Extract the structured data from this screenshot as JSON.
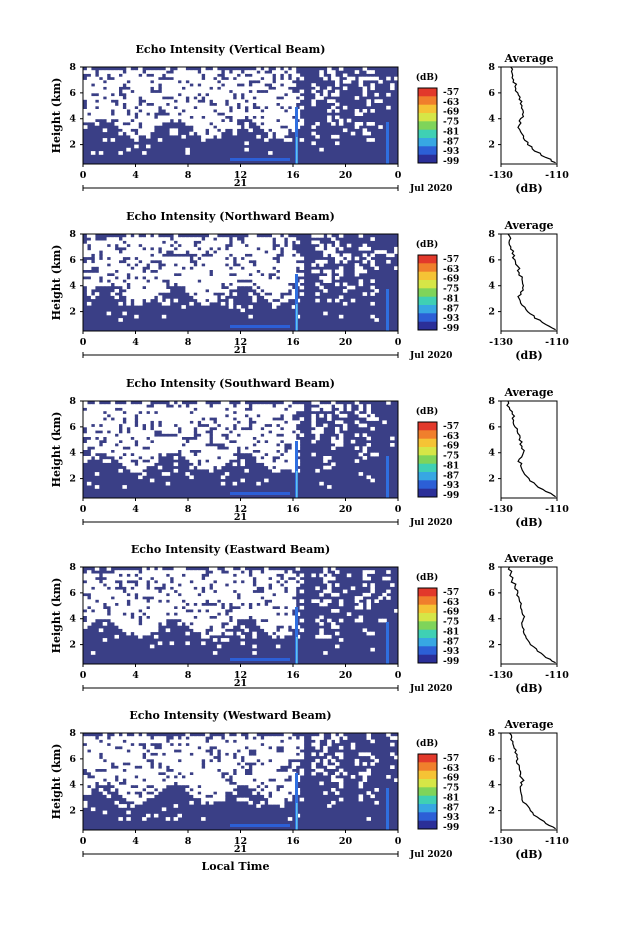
{
  "chart_data": [
    {
      "type": "heatmap",
      "title": "Echo Intensity (Vertical Beam)",
      "ylabel": "Height (km)",
      "yticks": [
        "2",
        "4",
        "6",
        "8"
      ],
      "ylim": [
        0.5,
        8
      ],
      "xticks": [
        "0",
        "4",
        "8",
        "12",
        "16",
        "20",
        "0"
      ],
      "xlim": [
        0,
        24
      ],
      "date_day": "21",
      "date_label": "Jul 2020",
      "colorbar": {
        "unit": "(dB)",
        "ticks": [
          "-57",
          "-63",
          "-69",
          "-75",
          "-81",
          "-87",
          "-93",
          "-99"
        ]
      },
      "profile": {
        "title": "Average",
        "xlabel": "(dB)",
        "xticks": [
          "-130",
          "-110"
        ],
        "xlim": [
          -130,
          -110
        ],
        "yticks": [
          "2",
          "4",
          "6",
          "8"
        ],
        "ylim": [
          0.5,
          8
        ],
        "points": [
          [
            -126.5,
            8.0
          ],
          [
            -126.0,
            7.5
          ],
          [
            -125.5,
            7.0
          ],
          [
            -125.0,
            6.5
          ],
          [
            -124.0,
            6.0
          ],
          [
            -123.5,
            5.5
          ],
          [
            -122.5,
            5.0
          ],
          [
            -122.0,
            4.5
          ],
          [
            -123.0,
            4.0
          ],
          [
            -123.5,
            3.5
          ],
          [
            -123.0,
            3.0
          ],
          [
            -122.0,
            2.5
          ],
          [
            -120.5,
            2.0
          ],
          [
            -118.0,
            1.5
          ],
          [
            -114.0,
            1.0
          ],
          [
            -110.5,
            0.6
          ]
        ]
      }
    },
    {
      "type": "heatmap",
      "title": "Echo Intensity (Northward Beam)",
      "ylabel": "Height (km)",
      "yticks": [
        "2",
        "4",
        "6",
        "8"
      ],
      "ylim": [
        0.5,
        8
      ],
      "xticks": [
        "0",
        "4",
        "8",
        "12",
        "16",
        "20",
        "0"
      ],
      "xlim": [
        0,
        24
      ],
      "date_day": "21",
      "date_label": "Jul 2020",
      "colorbar": {
        "unit": "(dB)",
        "ticks": [
          "-57",
          "-63",
          "-69",
          "-75",
          "-81",
          "-87",
          "-93",
          "-99"
        ]
      },
      "profile": {
        "title": "Average",
        "xlabel": "(dB)",
        "xticks": [
          "-130",
          "-110"
        ],
        "xlim": [
          -130,
          -110
        ],
        "yticks": [
          "2",
          "4",
          "6",
          "8"
        ],
        "ylim": [
          0.5,
          8
        ],
        "points": [
          [
            -127.5,
            8.0
          ],
          [
            -127.0,
            7.5
          ],
          [
            -126.5,
            7.0
          ],
          [
            -126.0,
            6.5
          ],
          [
            -125.0,
            6.0
          ],
          [
            -124.0,
            5.5
          ],
          [
            -123.5,
            5.0
          ],
          [
            -122.5,
            4.5
          ],
          [
            -122.0,
            4.0
          ],
          [
            -123.0,
            3.5
          ],
          [
            -123.5,
            3.0
          ],
          [
            -122.5,
            2.5
          ],
          [
            -120.5,
            2.0
          ],
          [
            -118.0,
            1.5
          ],
          [
            -114.0,
            1.0
          ],
          [
            -110.5,
            0.6
          ]
        ]
      }
    },
    {
      "type": "heatmap",
      "title": "Echo Intensity (Southward Beam)",
      "ylabel": "Height (km)",
      "yticks": [
        "2",
        "4",
        "6",
        "8"
      ],
      "ylim": [
        0.5,
        8
      ],
      "xticks": [
        "0",
        "4",
        "8",
        "12",
        "16",
        "20",
        "0"
      ],
      "xlim": [
        0,
        24
      ],
      "date_day": "21",
      "date_label": "Jul 2020",
      "colorbar": {
        "unit": "(dB)",
        "ticks": [
          "-57",
          "-63",
          "-69",
          "-75",
          "-81",
          "-87",
          "-93",
          "-99"
        ]
      },
      "profile": {
        "title": "Average",
        "xlabel": "(dB)",
        "xticks": [
          "-130",
          "-110"
        ],
        "xlim": [
          -130,
          -110
        ],
        "yticks": [
          "2",
          "4",
          "6",
          "8"
        ],
        "ylim": [
          0.5,
          8
        ],
        "points": [
          [
            -127.5,
            8.0
          ],
          [
            -127.0,
            7.5
          ],
          [
            -126.0,
            7.0
          ],
          [
            -125.5,
            6.5
          ],
          [
            -125.0,
            6.0
          ],
          [
            -124.0,
            5.5
          ],
          [
            -123.5,
            5.0
          ],
          [
            -122.5,
            4.5
          ],
          [
            -122.0,
            4.0
          ],
          [
            -123.5,
            3.5
          ],
          [
            -123.0,
            3.0
          ],
          [
            -122.0,
            2.5
          ],
          [
            -120.0,
            2.0
          ],
          [
            -117.5,
            1.5
          ],
          [
            -114.0,
            1.0
          ],
          [
            -110.5,
            0.6
          ]
        ]
      }
    },
    {
      "type": "heatmap",
      "title": "Echo Intensity (Eastward Beam)",
      "ylabel": "Height (km)",
      "yticks": [
        "2",
        "4",
        "6",
        "8"
      ],
      "ylim": [
        0.5,
        8
      ],
      "xticks": [
        "0",
        "4",
        "8",
        "12",
        "16",
        "20",
        "0"
      ],
      "xlim": [
        0,
        24
      ],
      "date_day": "21",
      "date_label": "Jul 2020",
      "colorbar": {
        "unit": "(dB)",
        "ticks": [
          "-57",
          "-63",
          "-69",
          "-75",
          "-81",
          "-87",
          "-93",
          "-99"
        ]
      },
      "profile": {
        "title": "Average",
        "xlabel": "(dB)",
        "xticks": [
          "-130",
          "-110"
        ],
        "xlim": [
          -130,
          -110
        ],
        "yticks": [
          "2",
          "4",
          "6",
          "8"
        ],
        "ylim": [
          0.5,
          8
        ],
        "points": [
          [
            -127.0,
            8.0
          ],
          [
            -126.5,
            7.5
          ],
          [
            -126.0,
            7.0
          ],
          [
            -125.0,
            6.5
          ],
          [
            -124.0,
            6.0
          ],
          [
            -123.5,
            5.5
          ],
          [
            -123.0,
            5.0
          ],
          [
            -122.5,
            4.5
          ],
          [
            -122.0,
            4.0
          ],
          [
            -122.5,
            3.5
          ],
          [
            -122.0,
            3.0
          ],
          [
            -121.0,
            2.5
          ],
          [
            -119.5,
            2.0
          ],
          [
            -117.0,
            1.5
          ],
          [
            -114.0,
            1.0
          ],
          [
            -110.5,
            0.6
          ]
        ]
      }
    },
    {
      "type": "heatmap",
      "title": "Echo Intensity (Westward Beam)",
      "ylabel": "Height (km)",
      "yticks": [
        "2",
        "4",
        "6",
        "8"
      ],
      "ylim": [
        0.5,
        8
      ],
      "xticks": [
        "0",
        "4",
        "8",
        "12",
        "16",
        "20",
        "0"
      ],
      "xlim": [
        0,
        24
      ],
      "date_day": "21",
      "date_label": "Jul 2020",
      "xlabel": "Local Time",
      "colorbar": {
        "unit": "(dB)",
        "ticks": [
          "-57",
          "-63",
          "-69",
          "-75",
          "-81",
          "-87",
          "-93",
          "-99"
        ]
      },
      "profile": {
        "title": "Average",
        "xlabel": "(dB)",
        "xticks": [
          "-130",
          "-110"
        ],
        "xlim": [
          -130,
          -110
        ],
        "yticks": [
          "2",
          "4",
          "6",
          "8"
        ],
        "ylim": [
          0.5,
          8
        ],
        "points": [
          [
            -127.0,
            8.0
          ],
          [
            -126.5,
            7.5
          ],
          [
            -125.5,
            7.0
          ],
          [
            -125.0,
            6.5
          ],
          [
            -124.0,
            6.0
          ],
          [
            -123.5,
            5.5
          ],
          [
            -123.0,
            5.0
          ],
          [
            -122.5,
            4.5
          ],
          [
            -122.5,
            4.0
          ],
          [
            -123.0,
            3.5
          ],
          [
            -122.5,
            3.0
          ],
          [
            -121.0,
            2.5
          ],
          [
            -119.5,
            2.0
          ],
          [
            -117.0,
            1.5
          ],
          [
            -114.0,
            1.0
          ],
          [
            -110.5,
            0.6
          ]
        ]
      }
    }
  ]
}
